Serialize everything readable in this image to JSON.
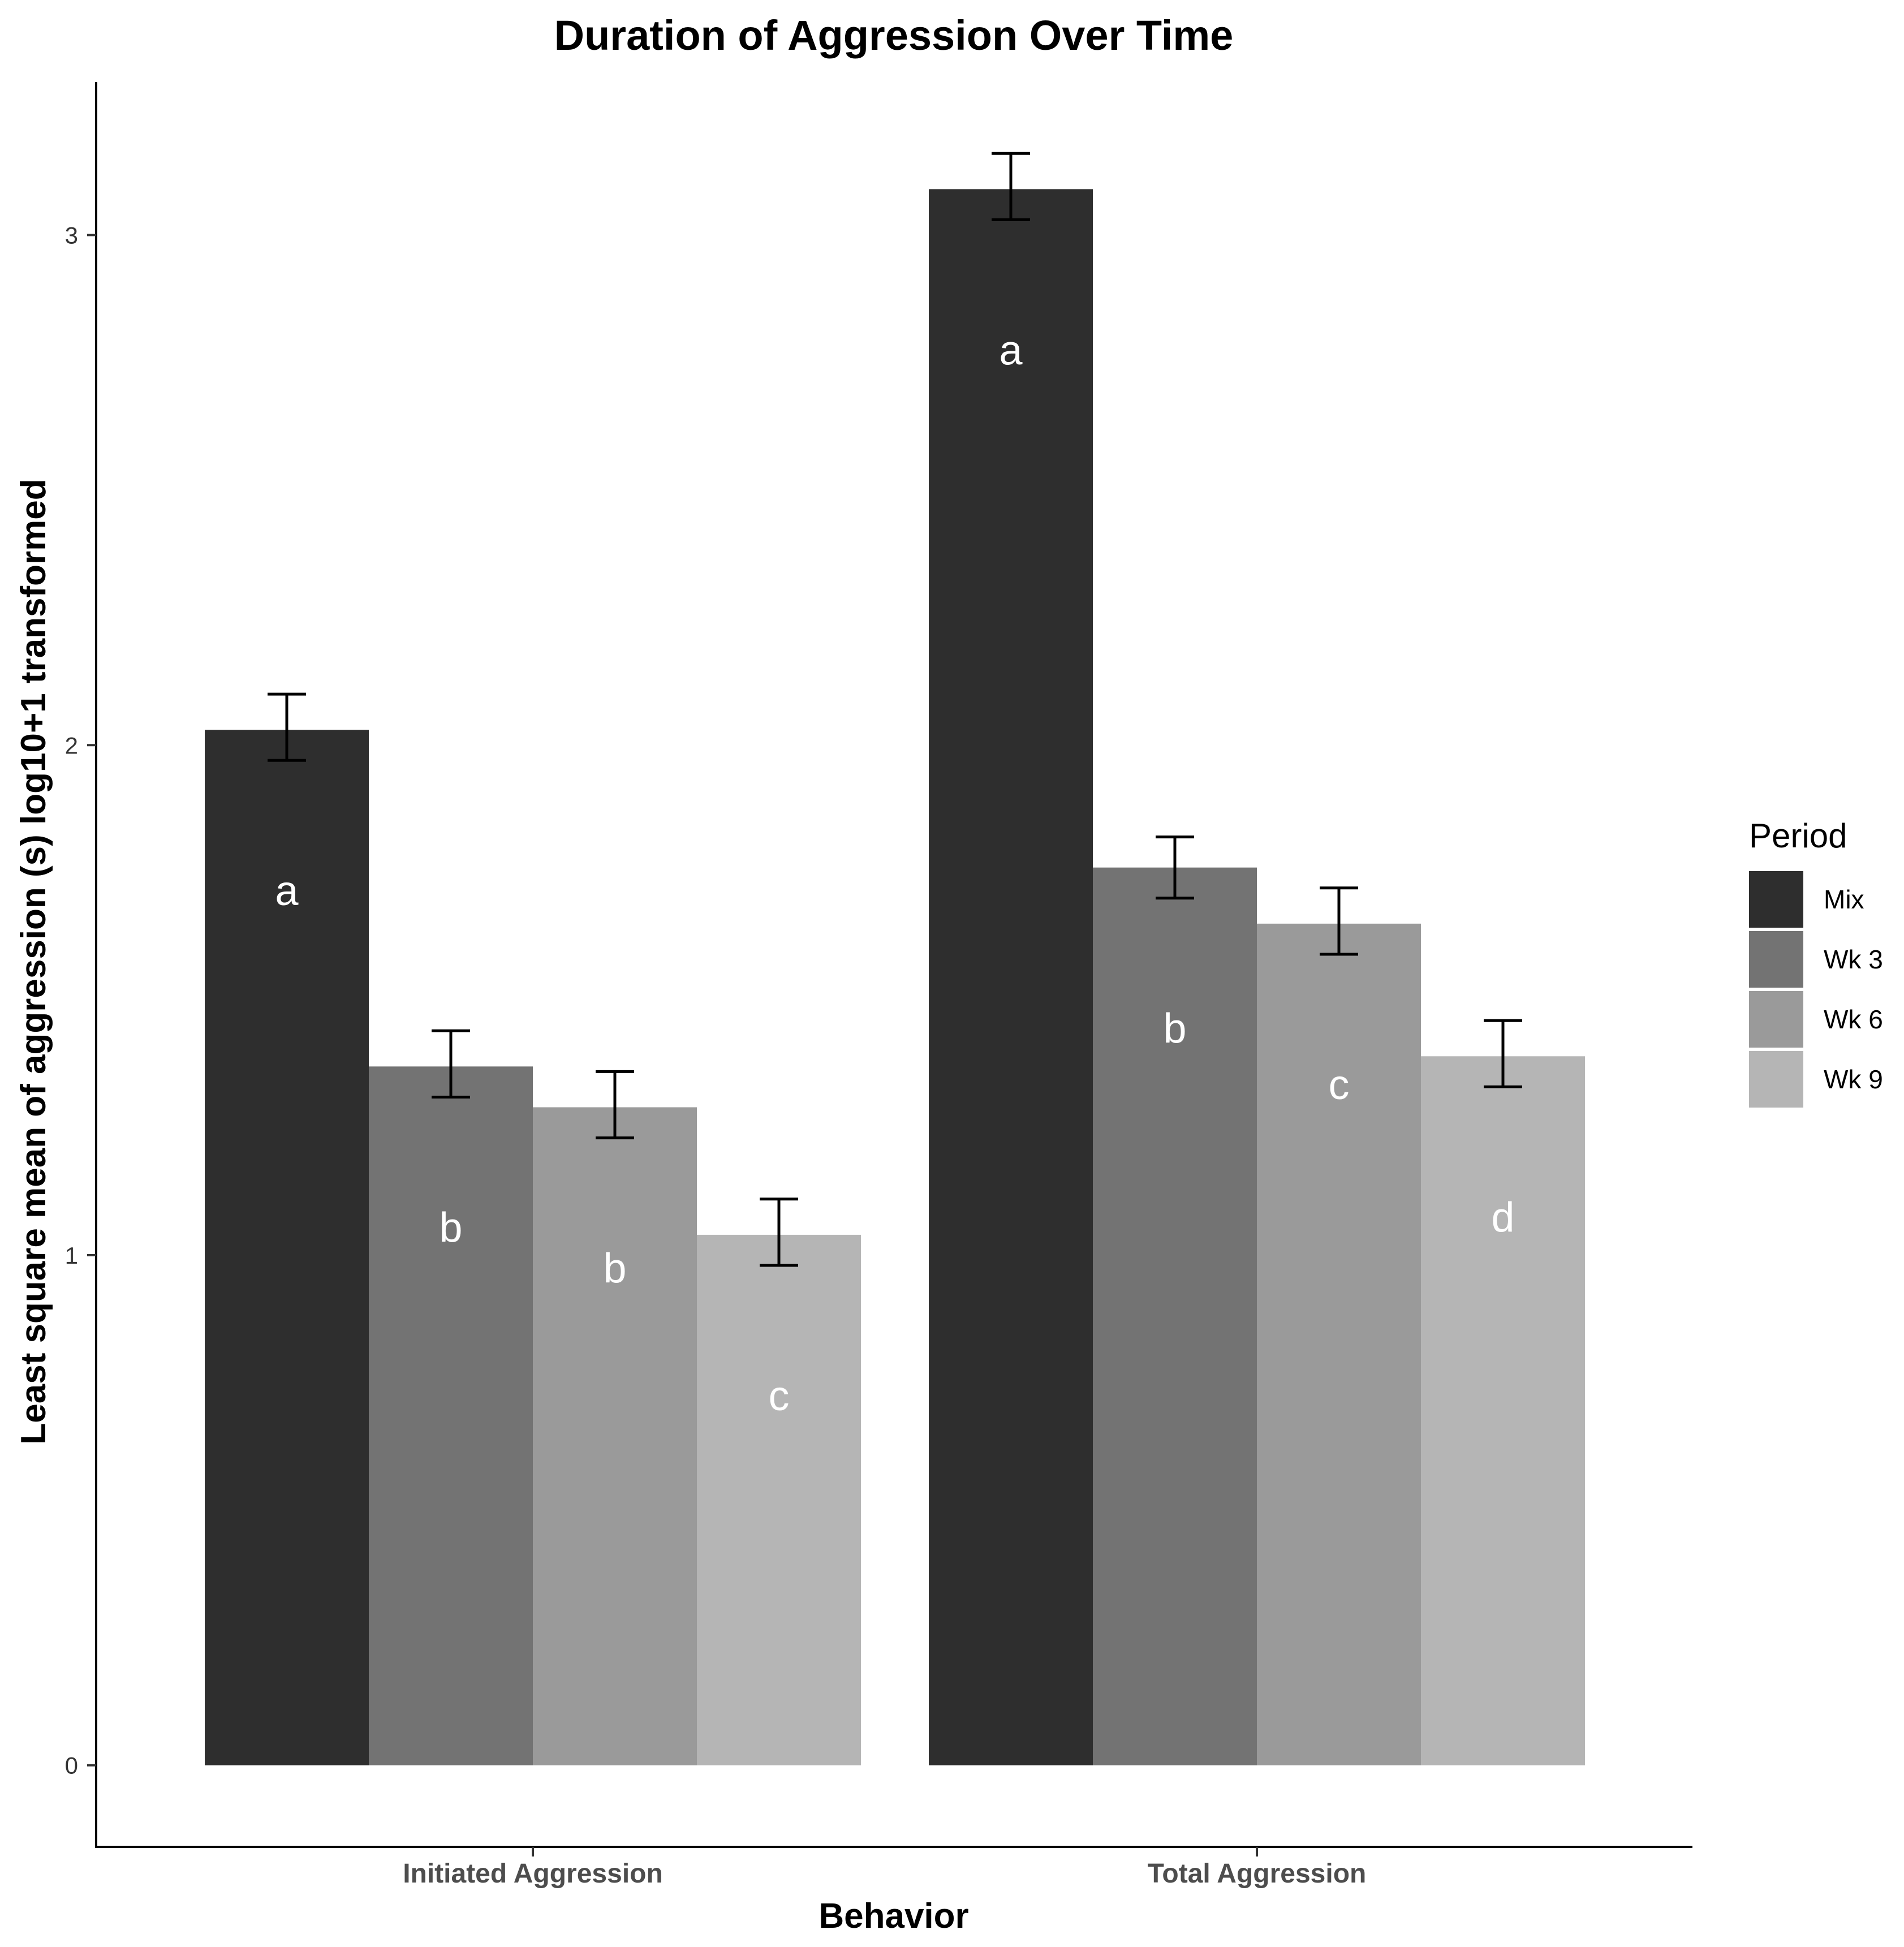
{
  "chart_data": {
    "type": "bar",
    "title": "Duration of Aggression Over Time",
    "xlabel": "Behavior",
    "ylabel": "Least square mean of aggression (s) log10+1 transformed",
    "ylim": [
      -0.16,
      3.3
    ],
    "yticks": [
      0,
      1,
      2,
      3
    ],
    "categories": [
      "Initiated Aggression",
      "Total Aggression"
    ],
    "legend": {
      "title": "Period",
      "position": "right"
    },
    "grid": false,
    "series": [
      {
        "name": "Mix",
        "color": "#2e2e2e",
        "values": [
          2.03,
          3.09
        ],
        "error_low": [
          1.97,
          3.03
        ],
        "error_high": [
          2.1,
          3.16
        ],
        "letters": [
          "a",
          "a"
        ]
      },
      {
        "name": "Wk 3",
        "color": "#737373",
        "values": [
          1.37,
          1.76
        ],
        "error_low": [
          1.31,
          1.7
        ],
        "error_high": [
          1.44,
          1.82
        ],
        "letters": [
          "b",
          "b"
        ]
      },
      {
        "name": "Wk 6",
        "color": "#9a9a9a",
        "values": [
          1.29,
          1.65
        ],
        "error_low": [
          1.23,
          1.59
        ],
        "error_high": [
          1.36,
          1.72
        ],
        "letters": [
          "b",
          "c"
        ]
      },
      {
        "name": "Wk 9",
        "color": "#b5b5b5",
        "values": [
          1.04,
          1.39
        ],
        "error_low": [
          0.98,
          1.33
        ],
        "error_high": [
          1.11,
          1.46
        ],
        "letters": [
          "c",
          "d"
        ]
      }
    ]
  }
}
